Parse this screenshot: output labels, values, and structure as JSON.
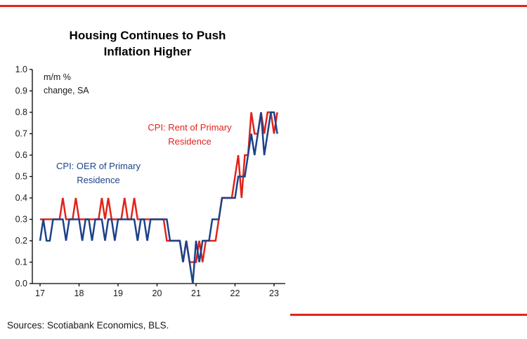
{
  "accent": {
    "red": "#e2231a",
    "navy": "#1d428a"
  },
  "chart": {
    "title_line1": "Housing Continues to Push",
    "title_line2": "Inflation Higher",
    "unit_label_line1": "m/m %",
    "unit_label_line2": "change, SA",
    "rent_label_line1": "CPI: Rent of Primary",
    "rent_label_line2": "Residence",
    "oer_label_line1": "CPI: OER of Primary",
    "oer_label_line2": "Residence"
  },
  "source": "Sources: Scotiabank Economics, BLS.",
  "chart_data": {
    "type": "line",
    "title": "Housing Continues to Push Inflation Higher",
    "ylabel": "m/m % change, SA",
    "xlabel": "",
    "ylim": [
      0.0,
      1.0
    ],
    "y_tick_step": 0.1,
    "y_tick_labels": [
      "0.0",
      "0.1",
      "0.2",
      "0.3",
      "0.4",
      "0.5",
      "0.6",
      "0.7",
      "0.8",
      "0.9",
      "1.0"
    ],
    "x_tick_labels": [
      "17",
      "18",
      "19",
      "20",
      "21",
      "22",
      "23"
    ],
    "x_start": "2017-01",
    "x_frequency": "monthly",
    "months_per_tick": 12,
    "grid": false,
    "legend_position": "inline-annotations",
    "series": [
      {
        "name": "CPI: Rent of Primary Residence",
        "color": "#e2231a",
        "values": [
          0.3,
          0.3,
          0.3,
          0.3,
          0.3,
          0.3,
          0.3,
          0.4,
          0.3,
          0.3,
          0.3,
          0.4,
          0.3,
          0.3,
          0.3,
          0.3,
          0.3,
          0.3,
          0.3,
          0.4,
          0.3,
          0.4,
          0.3,
          0.3,
          0.3,
          0.3,
          0.4,
          0.3,
          0.3,
          0.4,
          0.3,
          0.3,
          0.3,
          0.3,
          0.3,
          0.3,
          0.3,
          0.3,
          0.3,
          0.2,
          0.2,
          0.2,
          0.2,
          0.2,
          0.1,
          0.2,
          0.1,
          0.1,
          0.1,
          0.2,
          0.1,
          0.2,
          0.2,
          0.2,
          0.2,
          0.3,
          0.4,
          0.4,
          0.4,
          0.4,
          0.5,
          0.6,
          0.4,
          0.6,
          0.6,
          0.8,
          0.7,
          0.7,
          0.8,
          0.7,
          0.8,
          0.8,
          0.7,
          0.8
        ]
      },
      {
        "name": "CPI: OER of Primary Residence",
        "color": "#1d428a",
        "values": [
          0.2,
          0.3,
          0.2,
          0.2,
          0.3,
          0.3,
          0.3,
          0.3,
          0.2,
          0.3,
          0.3,
          0.3,
          0.3,
          0.2,
          0.3,
          0.3,
          0.2,
          0.3,
          0.3,
          0.3,
          0.2,
          0.3,
          0.3,
          0.2,
          0.3,
          0.3,
          0.3,
          0.3,
          0.3,
          0.3,
          0.2,
          0.3,
          0.3,
          0.2,
          0.3,
          0.3,
          0.3,
          0.3,
          0.3,
          0.3,
          0.2,
          0.2,
          0.2,
          0.2,
          0.1,
          0.2,
          0.1,
          0.0,
          0.2,
          0.1,
          0.2,
          0.2,
          0.2,
          0.3,
          0.3,
          0.3,
          0.4,
          0.4,
          0.4,
          0.4,
          0.4,
          0.5,
          0.5,
          0.5,
          0.6,
          0.7,
          0.6,
          0.7,
          0.8,
          0.6,
          0.7,
          0.8,
          0.8,
          0.7
        ]
      }
    ]
  }
}
